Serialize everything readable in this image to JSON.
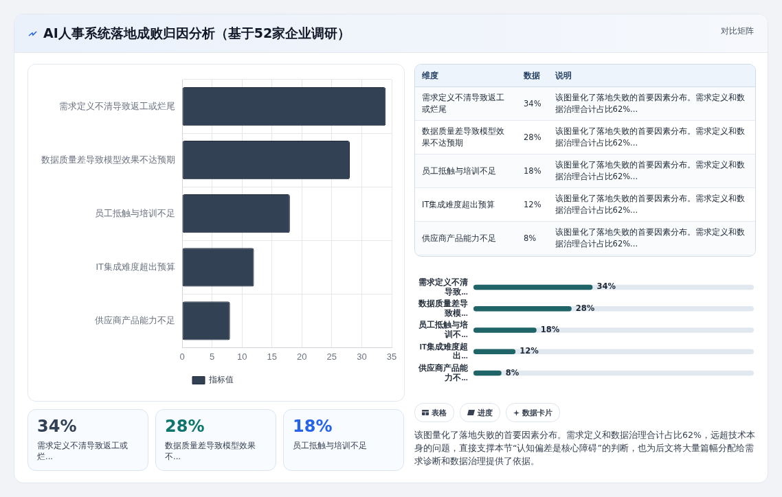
{
  "chart_data": [
    {
      "type": "bar",
      "title": "AI人事系统落地成败归因分析（基于52家企业调研）",
      "orientation": "horizontal",
      "categories": [
        "需求定义不清导致返工或烂尾",
        "数据质量差导致模型效果不达预期",
        "员工抵触与培训不足",
        "IT集成难度超出预算",
        "供应商产品能力不足"
      ],
      "series": [
        {
          "name": "指标值",
          "color": "#334155",
          "values": [
            34,
            28,
            18,
            12,
            8
          ]
        }
      ],
      "xlim": [
        0,
        35
      ],
      "xticks": [
        0,
        5,
        10,
        15,
        20,
        25,
        30,
        35
      ],
      "grid": true,
      "legend": "bottom",
      "annotations": [
        "对比矩阵",
        "该图量化了落地失败的首要因素分布。需求定义和数据治理合计占比62%，远超技术本身的问题，直接支撑本节“认知偏差是核心障碍”的判断，也为后文将大量篇幅分配给需求诊断和数据治理提供了依据。",
        "表格",
        "进度",
        "数据卡片"
      ]
    },
    {
      "type": "other",
      "categories": [
        "需求定义不清导致返工或烂尾",
        "数据质量差导致模型效果不达预期",
        "员工抵触与培训不足",
        "IT集成难度超出预算",
        "供应商产品能力不足"
      ],
      "value_labels": [
        "34%",
        "28%",
        "18%",
        "12%",
        "8%"
      ],
      "annotations": [
        "维度",
        "数据",
        "说明",
        "该图量化了落地失败的首要因素分布。需求定义和数据治理合计占比62%...",
        "该图量化了落地失败的首要因素分布。需求定义和数据治理合计占比62%...",
        "该图量化了落地失败的首要因素分布。需求定义和数据治理合计占比62%...",
        "该图量化了落地失败的首要因素分布。需求定义和数据治理合计占比62%...",
        "该图量化了落地失败的首要因素分布。需求定义和数据治理合计占比62%..."
      ]
    },
    {
      "type": "bar",
      "orientation": "horizontal",
      "categories": [
        "需求定义不清导致...",
        "数据质量差导致模...",
        "员工抵触与培训不...",
        "IT集成难度超出...",
        "供应商产品能力不..."
      ],
      "series": [
        {
          "color": "#1f6466",
          "values": [
            34,
            28,
            18,
            12,
            8
          ],
          "value_labels": [
            "34%",
            "28%",
            "18%",
            "12%",
            "8%"
          ]
        }
      ],
      "tick_labels": "y"
    },
    {
      "type": "other",
      "categories": [
        "需求定义不清导致返工或烂...",
        "数据质量差导致模型效果不...",
        "员工抵触与培训不足"
      ],
      "value_labels": [
        "34%",
        "28%",
        "18%"
      ]
    }
  ]
}
